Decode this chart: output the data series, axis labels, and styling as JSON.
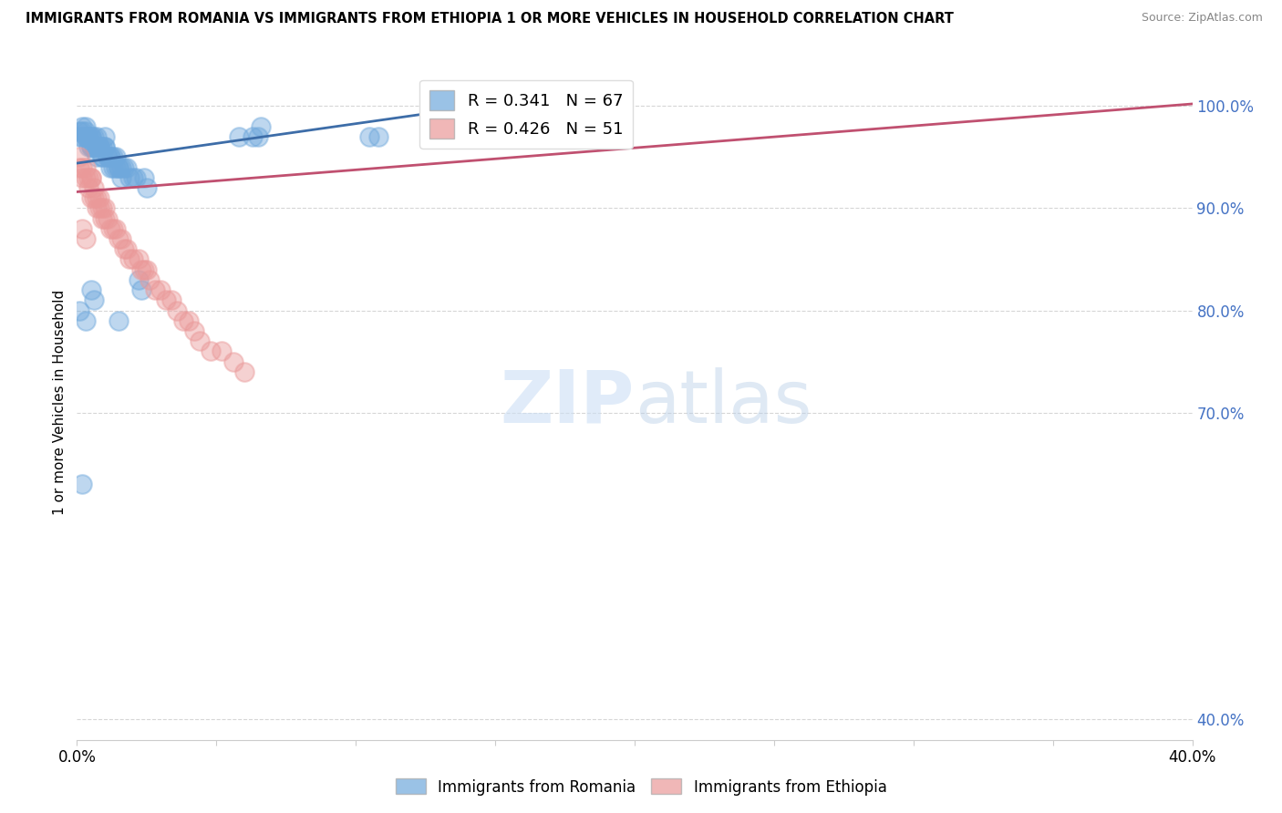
{
  "title": "IMMIGRANTS FROM ROMANIA VS IMMIGRANTS FROM ETHIOPIA 1 OR MORE VEHICLES IN HOUSEHOLD CORRELATION CHART",
  "source": "Source: ZipAtlas.com",
  "ylabel": "1 or more Vehicles in Household",
  "ytick_vals": [
    1.0,
    0.9,
    0.8,
    0.7,
    0.4
  ],
  "ytick_labels": [
    "100.0%",
    "90.0%",
    "80.0%",
    "70.0%",
    "40.0%"
  ],
  "xlim": [
    0.0,
    0.4
  ],
  "ylim": [
    0.38,
    1.04
  ],
  "romania_R": 0.341,
  "romania_N": 67,
  "ethiopia_R": 0.426,
  "ethiopia_N": 51,
  "romania_color": "#6fa8dc",
  "ethiopia_color": "#ea9999",
  "romania_line_color": "#3d6da8",
  "ethiopia_line_color": "#c05070",
  "legend_romania": "Immigrants from Romania",
  "legend_ethiopia": "Immigrants from Ethiopia",
  "romania_x": [
    0.001,
    0.001,
    0.002,
    0.002,
    0.002,
    0.003,
    0.003,
    0.003,
    0.003,
    0.004,
    0.004,
    0.004,
    0.005,
    0.005,
    0.005,
    0.005,
    0.006,
    0.006,
    0.006,
    0.007,
    0.007,
    0.007,
    0.007,
    0.008,
    0.008,
    0.008,
    0.009,
    0.009,
    0.009,
    0.01,
    0.01,
    0.01,
    0.011,
    0.011,
    0.012,
    0.012,
    0.012,
    0.013,
    0.013,
    0.014,
    0.014,
    0.015,
    0.015,
    0.016,
    0.016,
    0.017,
    0.018,
    0.019,
    0.02,
    0.021,
    0.022,
    0.023,
    0.024,
    0.025,
    0.058,
    0.063,
    0.065,
    0.066,
    0.105,
    0.108,
    0.148,
    0.001,
    0.002,
    0.003,
    0.005,
    0.006,
    0.015
  ],
  "romania_y": [
    0.975,
    0.97,
    0.98,
    0.975,
    0.97,
    0.975,
    0.97,
    0.97,
    0.98,
    0.97,
    0.97,
    0.96,
    0.97,
    0.97,
    0.96,
    0.96,
    0.97,
    0.96,
    0.96,
    0.97,
    0.96,
    0.96,
    0.95,
    0.96,
    0.96,
    0.96,
    0.95,
    0.95,
    0.96,
    0.96,
    0.96,
    0.97,
    0.95,
    0.95,
    0.95,
    0.95,
    0.94,
    0.95,
    0.94,
    0.95,
    0.94,
    0.94,
    0.94,
    0.94,
    0.93,
    0.94,
    0.94,
    0.93,
    0.93,
    0.93,
    0.83,
    0.82,
    0.93,
    0.92,
    0.97,
    0.97,
    0.97,
    0.98,
    0.97,
    0.97,
    0.98,
    0.8,
    0.63,
    0.79,
    0.82,
    0.81,
    0.79
  ],
  "ethiopia_x": [
    0.001,
    0.001,
    0.002,
    0.002,
    0.003,
    0.003,
    0.004,
    0.004,
    0.005,
    0.005,
    0.006,
    0.006,
    0.007,
    0.007,
    0.008,
    0.008,
    0.009,
    0.009,
    0.01,
    0.01,
    0.011,
    0.012,
    0.013,
    0.014,
    0.015,
    0.016,
    0.017,
    0.018,
    0.019,
    0.02,
    0.022,
    0.023,
    0.024,
    0.025,
    0.026,
    0.028,
    0.03,
    0.032,
    0.034,
    0.036,
    0.038,
    0.04,
    0.042,
    0.044,
    0.048,
    0.052,
    0.056,
    0.06,
    0.002,
    0.003,
    0.005
  ],
  "ethiopia_y": [
    0.94,
    0.95,
    0.93,
    0.94,
    0.93,
    0.94,
    0.93,
    0.92,
    0.93,
    0.91,
    0.91,
    0.92,
    0.91,
    0.9,
    0.9,
    0.91,
    0.89,
    0.9,
    0.89,
    0.9,
    0.89,
    0.88,
    0.88,
    0.88,
    0.87,
    0.87,
    0.86,
    0.86,
    0.85,
    0.85,
    0.85,
    0.84,
    0.84,
    0.84,
    0.83,
    0.82,
    0.82,
    0.81,
    0.81,
    0.8,
    0.79,
    0.79,
    0.78,
    0.77,
    0.76,
    0.76,
    0.75,
    0.74,
    0.88,
    0.87,
    0.93
  ],
  "romania_line_x": [
    0.0,
    0.15
  ],
  "romania_line_y": [
    0.944,
    1.002
  ],
  "ethiopia_line_x": [
    0.0,
    0.4
  ],
  "ethiopia_line_y": [
    0.916,
    1.002
  ]
}
